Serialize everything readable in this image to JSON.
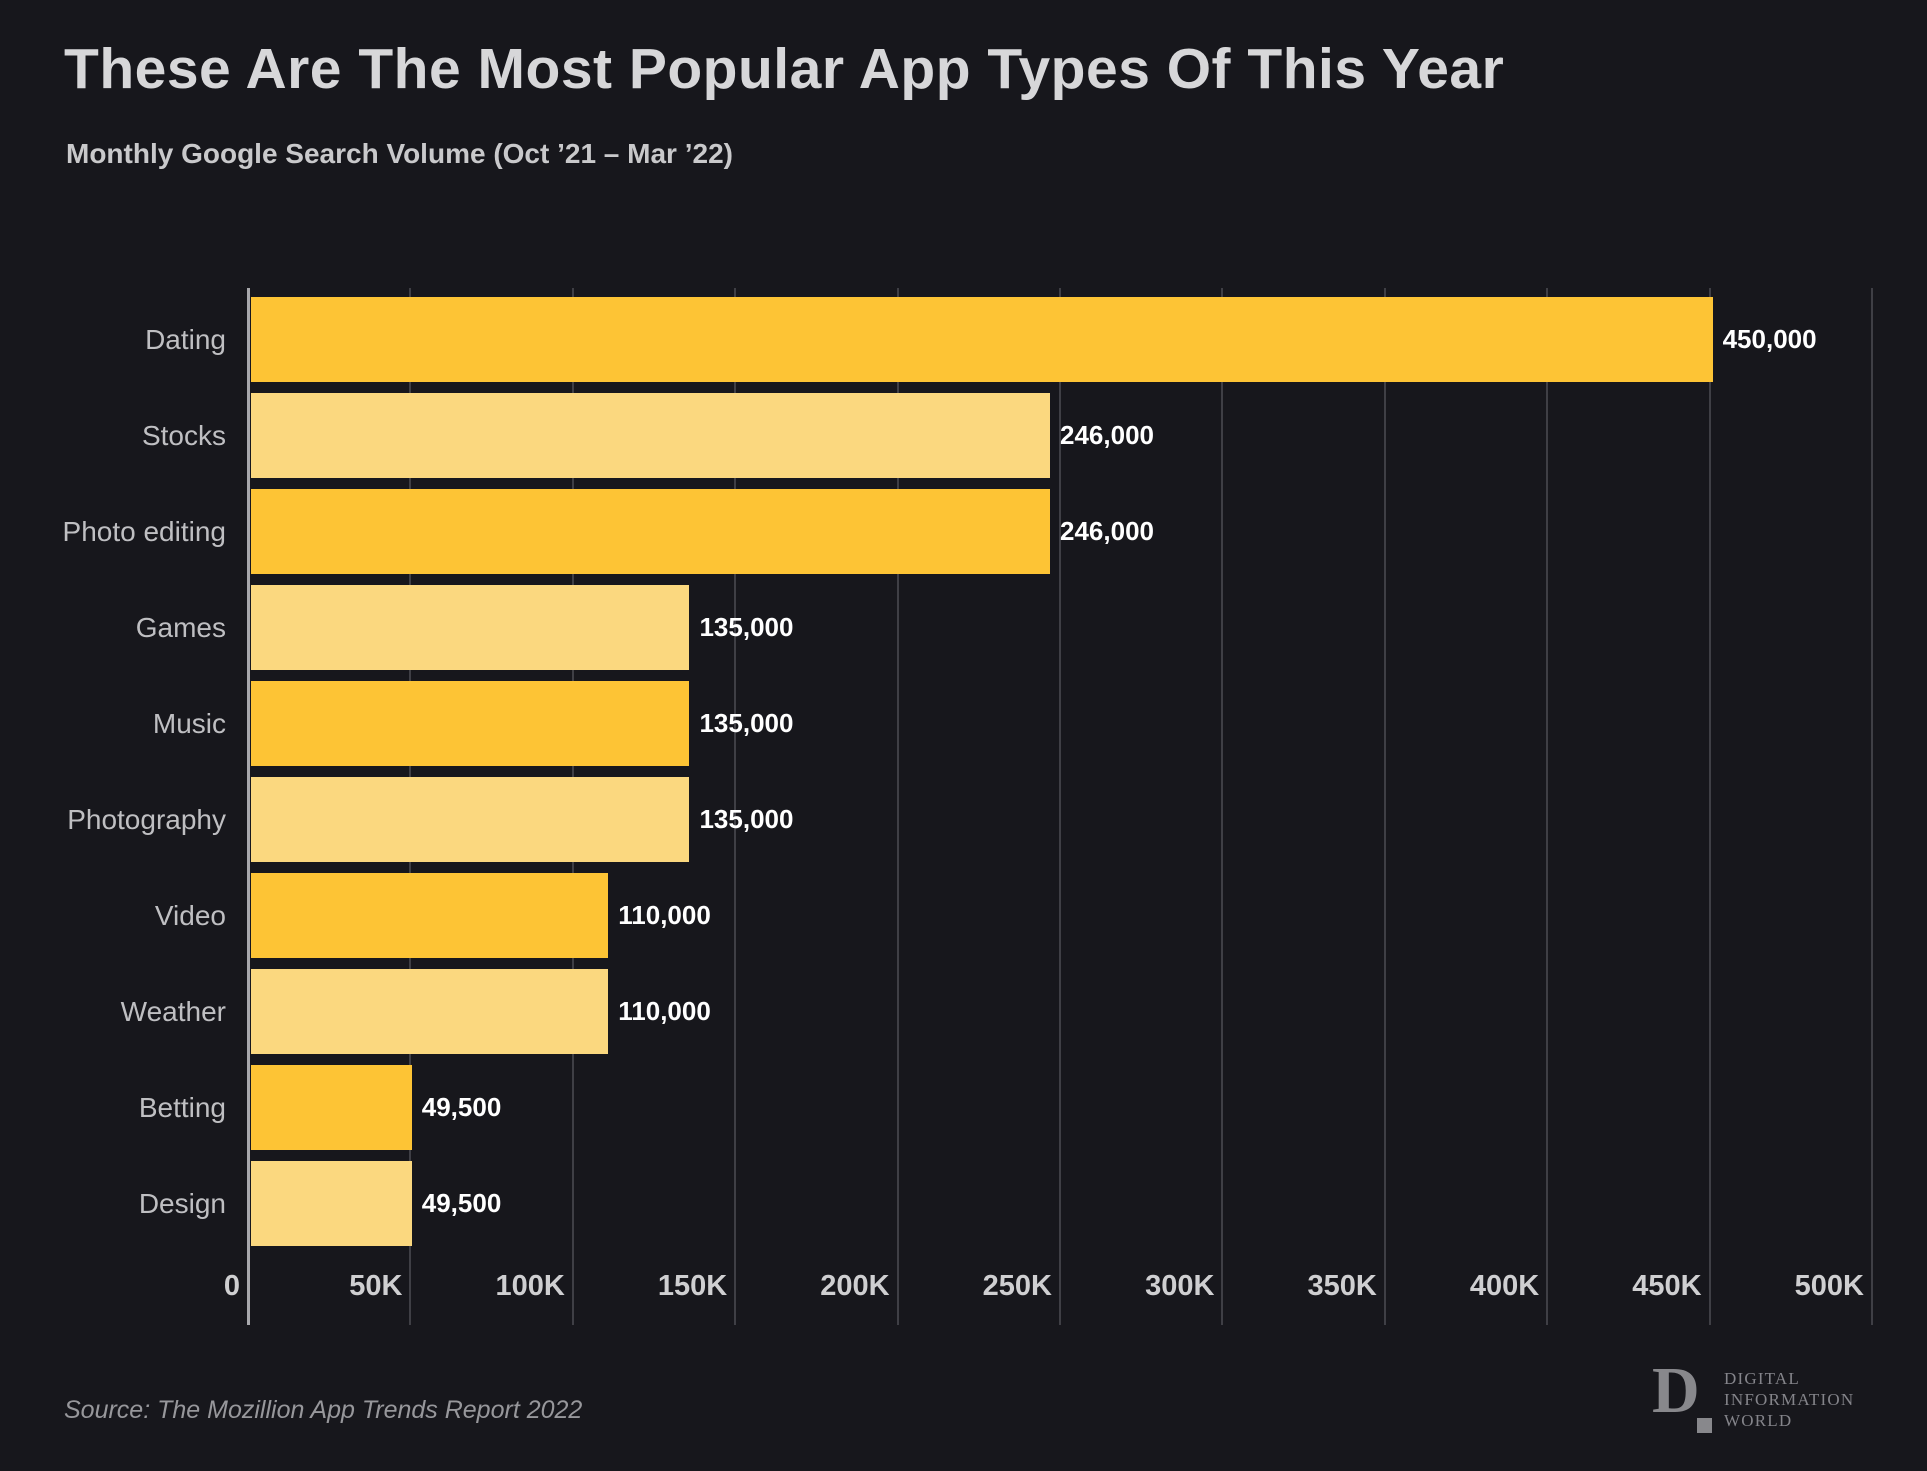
{
  "title": "These Are The Most Popular App Types Of This Year",
  "subtitle": "Monthly Google Search Volume (Oct ’21 – Mar ’22)",
  "source": {
    "text": "Source: The Mozillion App Trends Report 2022"
  },
  "logo": {
    "glyph": "D",
    "mark": "square",
    "lines": [
      "DIGITAL",
      "INFORMATION",
      "WORLD"
    ]
  },
  "colors": {
    "background": "#17171c",
    "bar_dark_gold": "#fdc435",
    "bar_light_gold": "#fbd87f",
    "value_label": "#ffffff",
    "category_label": "#bfbfc2",
    "tick_label": "#cfcfd1",
    "gridline": "#3f3f45",
    "axis_line": "#a8a8ac"
  },
  "chart_data": {
    "type": "bar",
    "orientation": "horizontal",
    "title": "These Are The Most Popular App Types Of This Year",
    "subtitle": "Monthly Google Search Volume (Oct ’21 – Mar ’22)",
    "categories": [
      "Dating",
      "Stocks",
      "Photo editing",
      "Games",
      "Music",
      "Photography",
      "Video",
      "Weather",
      "Betting",
      "Design"
    ],
    "values": [
      450000,
      246000,
      246000,
      135000,
      135000,
      135000,
      110000,
      110000,
      49500,
      49500
    ],
    "value_labels": [
      "450,000",
      "246,000",
      "246,000",
      "135,000",
      "135,000",
      "135,000",
      "110,000",
      "110,000",
      "49,500",
      "49,500"
    ],
    "xlim": [
      0,
      500000
    ],
    "x_tick_values": [
      0,
      50000,
      100000,
      150000,
      200000,
      250000,
      300000,
      350000,
      400000,
      450000,
      500000
    ],
    "x_tick_labels": [
      "0",
      "50K",
      "100K",
      "150K",
      "200K",
      "250K",
      "300K",
      "350K",
      "400K",
      "450K",
      "500K"
    ],
    "grid": "vertical",
    "legend": "none",
    "bar_color_alternation": [
      "#fdc435",
      "#fbd87f"
    ]
  }
}
